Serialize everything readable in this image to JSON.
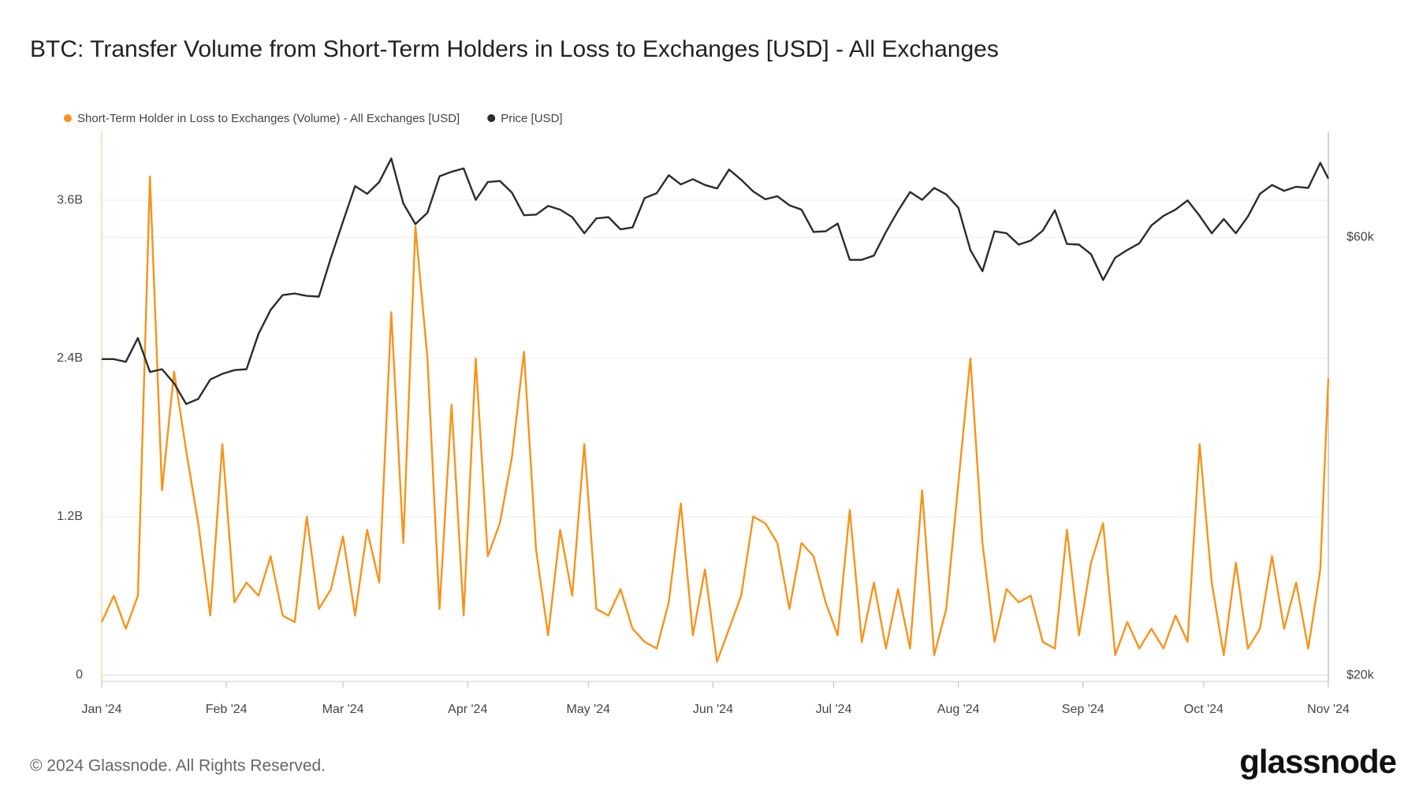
{
  "chart_data": {
    "type": "line",
    "title": "BTC: Transfer Volume from Short-Term Holders in Loss to Exchanges [USD] - All Exchanges",
    "copyright": "© 2024 Glassnode. All Rights Reserved.",
    "brand": "glassnode",
    "x": [
      0,
      3,
      6,
      9,
      12,
      15,
      18,
      21,
      24,
      27,
      30,
      33,
      36,
      39,
      42,
      45,
      48,
      51,
      54,
      57,
      60,
      63,
      66,
      69,
      72,
      75,
      78,
      81,
      84,
      87,
      90,
      93,
      96,
      99,
      102,
      105,
      108,
      111,
      114,
      117,
      120,
      123,
      126,
      129,
      132,
      135,
      138,
      141,
      144,
      147,
      150,
      153,
      156,
      159,
      162,
      165,
      168,
      171,
      174,
      177,
      180,
      183,
      186,
      189,
      192,
      195,
      198,
      201,
      204,
      207,
      210,
      213,
      216,
      219,
      222,
      225,
      228,
      231,
      234,
      237,
      240,
      243,
      246,
      249,
      252,
      255,
      258,
      261,
      264,
      267,
      270,
      273,
      276,
      279,
      282,
      285,
      288,
      291,
      294,
      297,
      300,
      303,
      305
    ],
    "xlim": [
      0,
      305
    ],
    "xticks": [
      {
        "value": 0,
        "label": "Jan '24"
      },
      {
        "value": 31,
        "label": "Feb '24"
      },
      {
        "value": 60,
        "label": "Mar '24"
      },
      {
        "value": 91,
        "label": "Apr '24"
      },
      {
        "value": 121,
        "label": "May '24"
      },
      {
        "value": 152,
        "label": "Jun '24"
      },
      {
        "value": 182,
        "label": "Jul '24"
      },
      {
        "value": 213,
        "label": "Aug '24"
      },
      {
        "value": 244,
        "label": "Sep '24"
      },
      {
        "value": 274,
        "label": "Oct '24"
      },
      {
        "value": 305,
        "label": "Nov '24"
      }
    ],
    "ylim": [
      -50000000.0,
      4120000000.0
    ],
    "yticks": [
      0,
      {
        "value": 1200000000.0,
        "label": "1.2B"
      },
      {
        "value": 2400000000.0,
        "label": "2.4B"
      },
      {
        "value": 3600000000.0,
        "label": "3.6B"
      }
    ],
    "y2lim": [
      19700,
      78200
    ],
    "y2log": true,
    "y2ticks": [
      {
        "value": 20000,
        "label": "$20k"
      },
      {
        "value": 60000,
        "label": "$60k"
      }
    ],
    "grid": true,
    "legend": "top-left",
    "series": [
      {
        "name": "Short-Term Holder in Loss to Exchanges (Volume) - All Exchanges [USD]",
        "color": "#f7931a",
        "values": [
          400000000.0,
          600000000.0,
          350000000.0,
          600000000.0,
          3780000000.0,
          1400000000.0,
          2300000000.0,
          1700000000.0,
          1150000000.0,
          450000000.0,
          1750000000.0,
          550000000.0,
          700000000.0,
          600000000.0,
          900000000.0,
          450000000.0,
          400000000.0,
          1200000000.0,
          500000000.0,
          650000000.0,
          1050000000.0,
          450000000.0,
          1100000000.0,
          700000000.0,
          2750000000.0,
          1000000000.0,
          3400000000.0,
          2400000000.0,
          500000000.0,
          2050000000.0,
          450000000.0,
          2400000000.0,
          900000000.0,
          1150000000.0,
          1650000000.0,
          2450000000.0,
          950000000.0,
          300000000.0,
          1100000000.0,
          600000000.0,
          1750000000.0,
          500000000.0,
          450000000.0,
          650000000.0,
          350000000.0,
          250000000.0,
          200000000.0,
          550000000.0,
          1300000000.0,
          300000000.0,
          800000000.0,
          100000000.0,
          350000000.0,
          600000000.0,
          1200000000.0,
          1150000000.0,
          1000000000.0,
          500000000.0,
          1000000000.0,
          900000000.0,
          550000000.0,
          300000000.0,
          1250000000.0,
          250000000.0,
          700000000.0,
          200000000.0,
          650000000.0,
          200000000.0,
          1400000000.0,
          150000000.0,
          500000000.0,
          1450000000.0,
          2400000000.0,
          1000000000.0,
          250000000.0,
          650000000.0,
          550000000.0,
          600000000.0,
          250000000.0,
          200000000.0,
          1100000000.0,
          300000000.0,
          850000000.0,
          1150000000.0,
          150000000.0,
          400000000.0,
          200000000.0,
          350000000.0,
          200000000.0,
          450000000.0,
          250000000.0,
          1750000000.0,
          700000000.0,
          150000000.0,
          850000000.0,
          200000000.0,
          350000000.0,
          900000000.0,
          350000000.0,
          700000000.0,
          200000000.0,
          800000000.0,
          2250000000.0
        ]
      },
      {
        "name": "Price [USD]",
        "color": "#2b2b2b",
        "axis": "y2",
        "values": [
          44200,
          44200,
          43900,
          46600,
          42800,
          43100,
          41600,
          39500,
          40000,
          42000,
          42600,
          43000,
          43100,
          47100,
          50000,
          51900,
          52100,
          51800,
          51700,
          57000,
          62400,
          68200,
          66900,
          68900,
          73100,
          65300,
          62000,
          63800,
          69900,
          70700,
          71300,
          65900,
          68900,
          69100,
          67100,
          63400,
          63500,
          64900,
          64300,
          63100,
          60600,
          62900,
          63100,
          61200,
          61500,
          66200,
          67000,
          70100,
          68500,
          69400,
          68400,
          67800,
          71100,
          69300,
          67300,
          66000,
          66500,
          65000,
          64300,
          60800,
          60900,
          62100,
          56700,
          56700,
          57300,
          60800,
          64100,
          67200,
          65900,
          67900,
          66800,
          64600,
          58100,
          55100,
          60900,
          60600,
          58900,
          59500,
          61000,
          64200,
          59000,
          58900,
          57500,
          53900,
          57000,
          58100,
          59100,
          61800,
          63300,
          64300,
          65800,
          63300,
          60600,
          62800,
          60600,
          63200,
          66900,
          68400,
          67400,
          68100,
          67900,
          72300,
          69500
        ]
      }
    ]
  }
}
